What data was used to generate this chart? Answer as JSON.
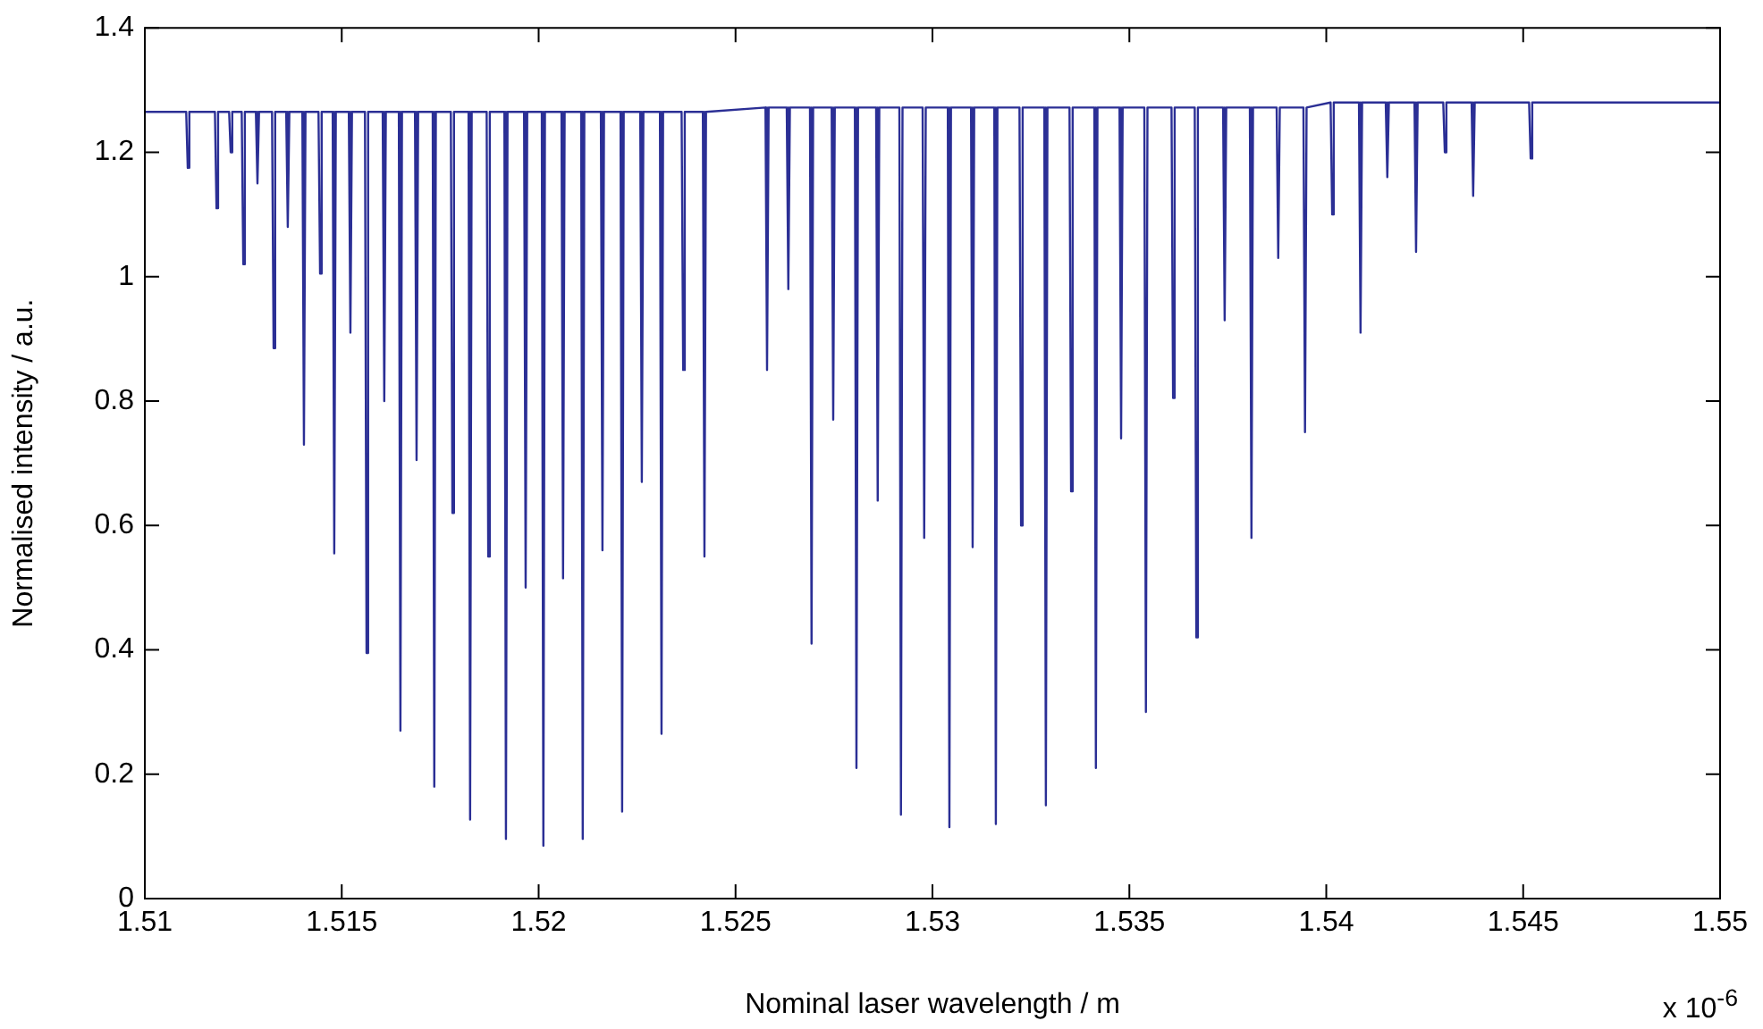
{
  "chart_data": {
    "type": "line",
    "xlabel": "Nominal laser wavelength / m",
    "ylabel": "Normalised intensity / a.u.",
    "annotations": [
      "x 10$^{-6}$"
    ],
    "x": [
      1.51,
      1.51105,
      1.51109,
      1.51113,
      1.51178,
      1.51182,
      1.51186,
      1.51214,
      1.51218,
      1.51222,
      1.51246,
      1.5125,
      1.51254,
      1.51282,
      1.51286,
      1.5129,
      1.51323,
      1.51327,
      1.51331,
      1.51359,
      1.51363,
      1.51367,
      1.514,
      1.51404,
      1.51408,
      1.51441,
      1.51445,
      1.51449,
      1.51477,
      1.51481,
      1.51485,
      1.51518,
      1.51522,
      1.51526,
      1.51559,
      1.51563,
      1.51567,
      1.51604,
      1.51608,
      1.51612,
      1.51645,
      1.51649,
      1.51653,
      1.51686,
      1.5169,
      1.51694,
      1.51731,
      1.51735,
      1.51739,
      1.51777,
      1.51781,
      1.51785,
      1.51822,
      1.51826,
      1.5183,
      1.51868,
      1.51872,
      1.51876,
      1.51913,
      1.51917,
      1.51921,
      1.51963,
      1.51967,
      1.51971,
      1.52008,
      1.52012,
      1.52016,
      1.52058,
      1.52062,
      1.52066,
      1.52108,
      1.52112,
      1.52116,
      1.52158,
      1.52162,
      1.52166,
      1.52208,
      1.52212,
      1.52216,
      1.52258,
      1.52262,
      1.52266,
      1.52308,
      1.52312,
      1.52316,
      1.52363,
      1.52367,
      1.52371,
      1.52417,
      1.52421,
      1.52425,
      1.52576,
      1.5258,
      1.52584,
      1.5263,
      1.52634,
      1.52638,
      1.52689,
      1.52693,
      1.52697,
      1.52744,
      1.52748,
      1.52752,
      1.52803,
      1.52807,
      1.52811,
      1.52857,
      1.52861,
      1.52865,
      1.52916,
      1.5292,
      1.52924,
      1.52975,
      1.52979,
      1.52983,
      1.53039,
      1.53043,
      1.53047,
      1.53098,
      1.53102,
      1.53106,
      1.53157,
      1.53161,
      1.53165,
      1.53221,
      1.53225,
      1.53229,
      1.53284,
      1.53288,
      1.53292,
      1.53348,
      1.53352,
      1.53356,
      1.53411,
      1.53415,
      1.53419,
      1.53475,
      1.53479,
      1.53483,
      1.53538,
      1.53542,
      1.53546,
      1.53607,
      1.53611,
      1.53615,
      1.53666,
      1.5367,
      1.53674,
      1.53738,
      1.53742,
      1.53746,
      1.53806,
      1.5381,
      1.53814,
      1.53874,
      1.53878,
      1.53882,
      1.53942,
      1.53946,
      1.5395,
      1.54011,
      1.54015,
      1.54019,
      1.54083,
      1.54087,
      1.54091,
      1.54151,
      1.54155,
      1.54159,
      1.54224,
      1.54228,
      1.54232,
      1.54297,
      1.54301,
      1.54305,
      1.54369,
      1.54373,
      1.54377,
      1.54515,
      1.54519,
      1.54523,
      1.55
    ],
    "series": [
      {
        "color": "#2b2f95",
        "values": [
          1.265,
          1.265,
          1.175,
          1.265,
          1.265,
          1.11,
          1.265,
          1.265,
          1.2,
          1.265,
          1.265,
          1.02,
          1.265,
          1.265,
          1.15,
          1.265,
          1.265,
          0.885,
          1.265,
          1.265,
          1.08,
          1.265,
          1.265,
          0.73,
          1.265,
          1.265,
          1.005,
          1.265,
          1.265,
          0.555,
          1.265,
          1.265,
          0.91,
          1.265,
          1.265,
          0.395,
          1.265,
          1.265,
          0.8,
          1.265,
          1.265,
          0.27,
          1.265,
          1.265,
          0.705,
          1.265,
          1.265,
          0.18,
          1.265,
          1.265,
          0.62,
          1.265,
          1.265,
          0.127,
          1.265,
          1.265,
          0.55,
          1.265,
          1.265,
          0.096,
          1.265,
          1.265,
          0.5,
          1.265,
          1.265,
          0.085,
          1.265,
          1.265,
          0.515,
          1.265,
          1.265,
          0.096,
          1.265,
          1.265,
          0.56,
          1.265,
          1.265,
          0.14,
          1.265,
          1.265,
          0.67,
          1.265,
          1.265,
          0.265,
          1.265,
          1.265,
          0.85,
          1.265,
          1.265,
          0.55,
          1.265,
          1.272,
          0.85,
          1.272,
          1.272,
          0.98,
          1.272,
          1.272,
          0.41,
          1.272,
          1.272,
          0.77,
          1.272,
          1.272,
          0.21,
          1.272,
          1.272,
          0.64,
          1.272,
          1.272,
          0.135,
          1.272,
          1.272,
          0.58,
          1.272,
          1.272,
          0.115,
          1.272,
          1.272,
          0.565,
          1.272,
          1.272,
          0.12,
          1.272,
          1.272,
          0.6,
          1.272,
          1.272,
          0.15,
          1.272,
          1.272,
          0.655,
          1.272,
          1.272,
          0.21,
          1.272,
          1.272,
          0.74,
          1.272,
          1.272,
          0.3,
          1.272,
          1.272,
          0.805,
          1.272,
          1.272,
          0.42,
          1.272,
          1.272,
          0.93,
          1.272,
          1.272,
          0.58,
          1.272,
          1.272,
          1.03,
          1.272,
          1.272,
          0.75,
          1.272,
          1.28,
          1.1,
          1.28,
          1.28,
          0.91,
          1.28,
          1.28,
          1.16,
          1.28,
          1.28,
          1.04,
          1.28,
          1.28,
          1.2,
          1.28,
          1.28,
          1.13,
          1.28,
          1.28,
          1.19,
          1.28,
          1.28
        ]
      }
    ],
    "xlim": [
      1.51,
      1.55
    ],
    "xticks": [
      1.51,
      1.515,
      1.52,
      1.525,
      1.53,
      1.535,
      1.54,
      1.545,
      1.55
    ],
    "ylim": [
      0,
      1.4
    ],
    "yticks": [
      0,
      0.2,
      0.4,
      0.6,
      0.8,
      1,
      1.2,
      1.4
    ],
    "grid": false,
    "legend": false,
    "marker": "none",
    "line_style": "solid"
  }
}
